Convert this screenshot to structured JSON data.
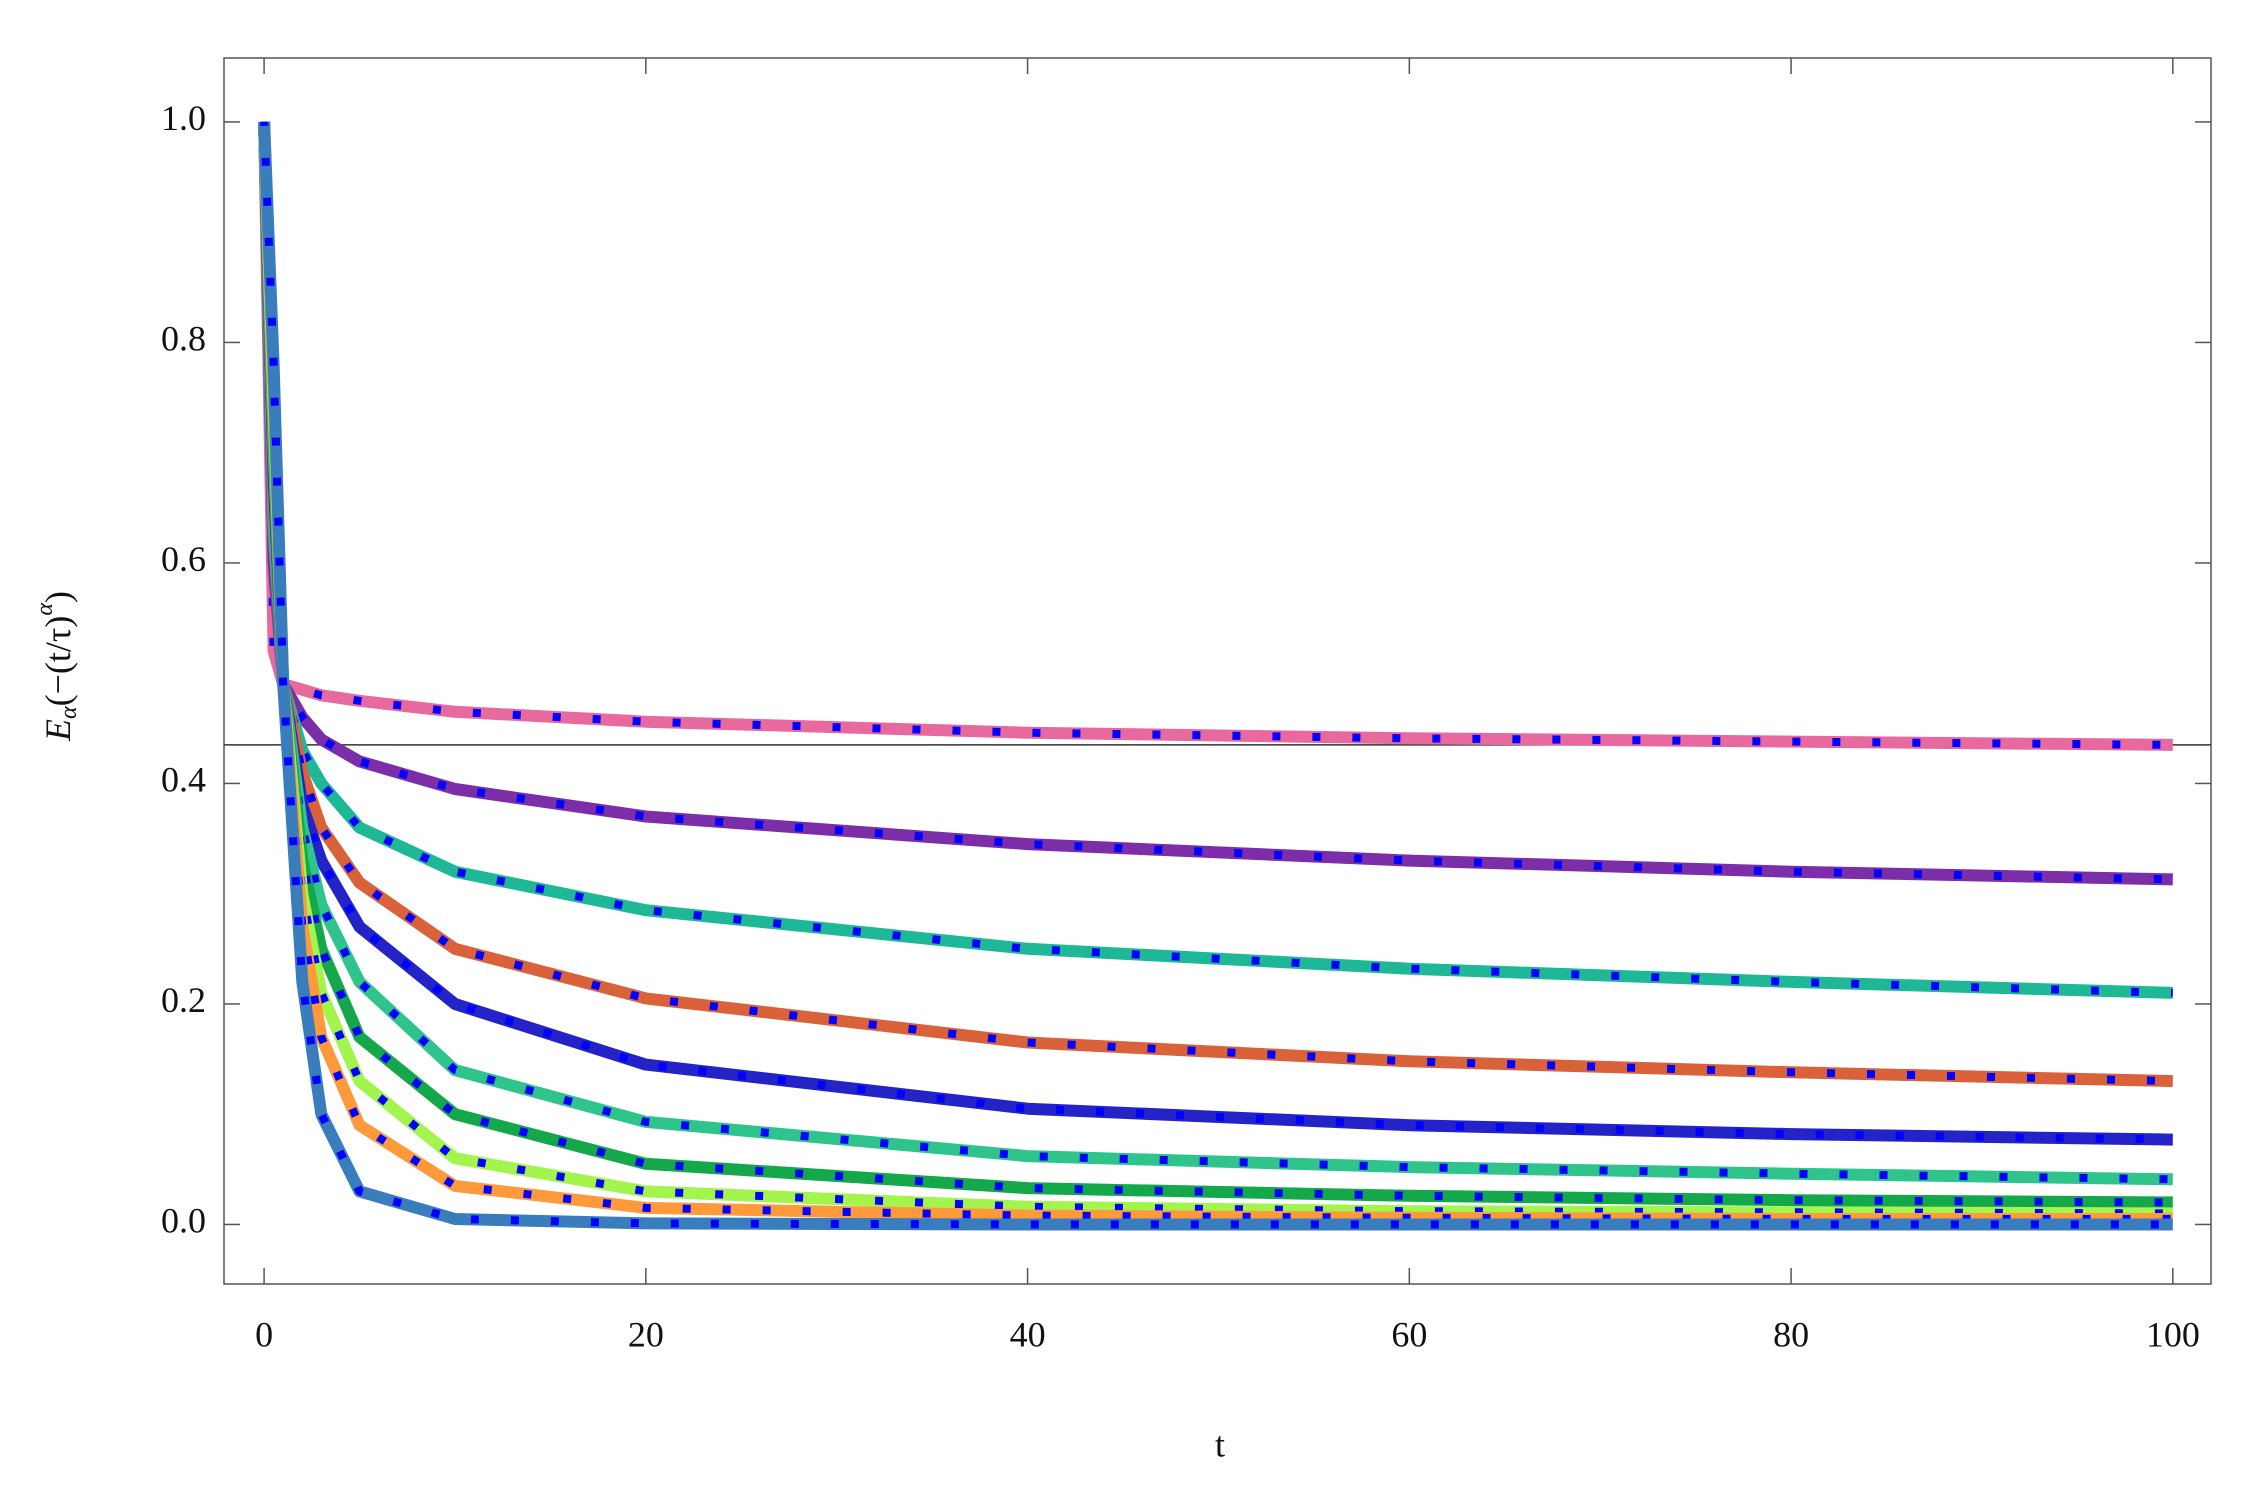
{
  "chart_data": {
    "type": "line",
    "xlabel": "t",
    "ylabel": [
      "E",
      "α",
      "(−(t/τ)",
      "α",
      ")"
    ],
    "x": [
      0,
      0.5,
      1,
      2,
      3,
      5,
      10,
      20,
      40,
      60,
      80,
      100
    ],
    "series": [
      {
        "color": "#e8699e",
        "values": [
          1,
          0.52,
          0.49,
          0.485,
          0.48,
          0.475,
          0.465,
          0.456,
          0.446,
          0.441,
          0.438,
          0.435
        ]
      },
      {
        "color": "#7b2ea8",
        "values": [
          1,
          0.6,
          0.49,
          0.46,
          0.44,
          0.42,
          0.395,
          0.37,
          0.345,
          0.33,
          0.32,
          0.313
        ]
      },
      {
        "color": "#1fb896",
        "values": [
          1,
          0.63,
          0.49,
          0.43,
          0.4,
          0.36,
          0.32,
          0.285,
          0.25,
          0.232,
          0.22,
          0.21
        ]
      },
      {
        "color": "#d9623b",
        "values": [
          1,
          0.66,
          0.49,
          0.41,
          0.36,
          0.31,
          0.25,
          0.205,
          0.165,
          0.148,
          0.138,
          0.13
        ]
      },
      {
        "color": "#2323c8",
        "values": [
          1,
          0.68,
          0.49,
          0.38,
          0.33,
          0.27,
          0.2,
          0.145,
          0.105,
          0.09,
          0.082,
          0.077
        ]
      },
      {
        "color": "#2ec48c",
        "values": [
          1,
          0.7,
          0.49,
          0.36,
          0.29,
          0.22,
          0.14,
          0.093,
          0.062,
          0.052,
          0.046,
          0.041
        ]
      },
      {
        "color": "#15a84a",
        "values": [
          1,
          0.72,
          0.49,
          0.33,
          0.25,
          0.17,
          0.1,
          0.055,
          0.033,
          0.026,
          0.022,
          0.02
        ]
      },
      {
        "color": "#a3f54e",
        "values": [
          1,
          0.74,
          0.49,
          0.3,
          0.21,
          0.13,
          0.06,
          0.03,
          0.016,
          0.012,
          0.011,
          0.01
        ]
      },
      {
        "color": "#ff9a3c",
        "values": [
          1,
          0.76,
          0.49,
          0.27,
          0.17,
          0.09,
          0.035,
          0.015,
          0.008,
          0.006,
          0.005,
          0.005
        ]
      },
      {
        "color": "#3a7dbd",
        "values": [
          1,
          0.78,
          0.49,
          0.22,
          0.1,
          0.03,
          0.005,
          0.001,
          0,
          0,
          0,
          0
        ]
      }
    ],
    "overlay_color": "#0000ff",
    "hline": 0.435,
    "xlim": [
      -2.1,
      102
    ],
    "ylim": [
      -0.054,
      1.058
    ],
    "xticks": [
      0,
      20,
      40,
      60,
      80,
      100
    ],
    "yticks": [
      {
        "value": 0,
        "label": "0.0"
      },
      0.2,
      0.4,
      0.6,
      0.8,
      {
        "value": 1,
        "label": "1.0"
      }
    ]
  }
}
